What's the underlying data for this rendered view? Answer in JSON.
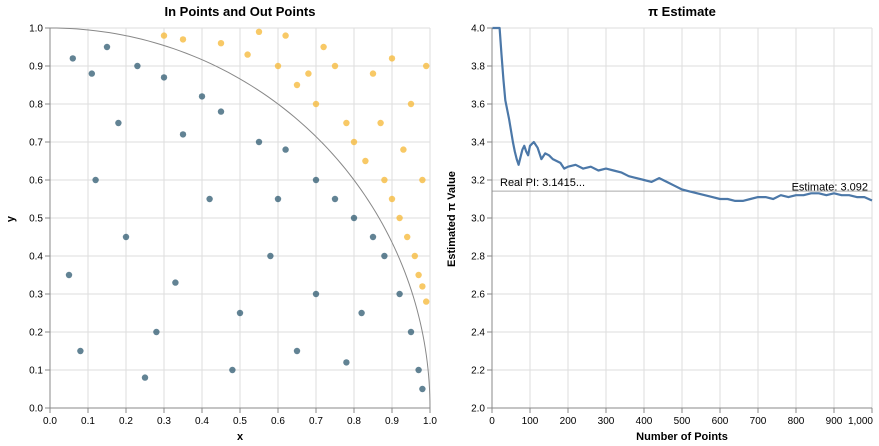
{
  "chart_data": [
    {
      "type": "scatter",
      "title": "In Points and Out Points",
      "xlabel": "x",
      "ylabel": "y",
      "xlim": [
        0,
        1
      ],
      "ylim": [
        0,
        1
      ],
      "grid": true,
      "x_ticks": [
        "0.0",
        "0.1",
        "0.2",
        "0.3",
        "0.4",
        "0.5",
        "0.6",
        "0.7",
        "0.8",
        "0.9",
        "1.0"
      ],
      "y_ticks": [
        "0.0",
        "0.1",
        "0.2",
        "0.3",
        "0.4",
        "0.5",
        "0.6",
        "0.7",
        "0.8",
        "0.9",
        "1.0"
      ],
      "boundary": "quarter circle x^2 + y^2 = 1",
      "colors": {
        "in": "#1f4e66",
        "out": "#f5b733",
        "boundary": "#888888"
      },
      "series": [
        {
          "category": "in",
          "points": [
            [
              0.06,
              0.92
            ],
            [
              0.11,
              0.88
            ],
            [
              0.15,
              0.95
            ],
            [
              0.23,
              0.9
            ],
            [
              0.3,
              0.87
            ],
            [
              0.4,
              0.82
            ],
            [
              0.45,
              0.78
            ],
            [
              0.55,
              0.7
            ],
            [
              0.62,
              0.68
            ],
            [
              0.7,
              0.6
            ],
            [
              0.75,
              0.55
            ],
            [
              0.8,
              0.5
            ],
            [
              0.85,
              0.45
            ],
            [
              0.88,
              0.4
            ],
            [
              0.92,
              0.3
            ],
            [
              0.95,
              0.2
            ],
            [
              0.97,
              0.1
            ],
            [
              0.98,
              0.05
            ],
            [
              0.12,
              0.6
            ],
            [
              0.2,
              0.45
            ],
            [
              0.33,
              0.33
            ],
            [
              0.5,
              0.25
            ],
            [
              0.65,
              0.15
            ],
            [
              0.78,
              0.12
            ],
            [
              0.08,
              0.15
            ],
            [
              0.25,
              0.08
            ],
            [
              0.42,
              0.55
            ],
            [
              0.58,
              0.4
            ],
            [
              0.7,
              0.3
            ],
            [
              0.35,
              0.72
            ],
            [
              0.18,
              0.75
            ],
            [
              0.05,
              0.35
            ],
            [
              0.28,
              0.2
            ],
            [
              0.48,
              0.1
            ],
            [
              0.6,
              0.55
            ],
            [
              0.82,
              0.25
            ]
          ]
        },
        {
          "category": "out",
          "points": [
            [
              0.3,
              0.98
            ],
            [
              0.35,
              0.97
            ],
            [
              0.45,
              0.96
            ],
            [
              0.52,
              0.93
            ],
            [
              0.6,
              0.9
            ],
            [
              0.65,
              0.85
            ],
            [
              0.7,
              0.8
            ],
            [
              0.72,
              0.95
            ],
            [
              0.78,
              0.75
            ],
            [
              0.8,
              0.7
            ],
            [
              0.83,
              0.65
            ],
            [
              0.85,
              0.88
            ],
            [
              0.88,
              0.6
            ],
            [
              0.9,
              0.55
            ],
            [
              0.92,
              0.5
            ],
            [
              0.94,
              0.45
            ],
            [
              0.96,
              0.4
            ],
            [
              0.97,
              0.35
            ],
            [
              0.98,
              0.32
            ],
            [
              0.99,
              0.28
            ],
            [
              0.95,
              0.8
            ],
            [
              0.9,
              0.92
            ],
            [
              0.75,
              0.9
            ],
            [
              0.62,
              0.98
            ],
            [
              0.55,
              0.99
            ],
            [
              0.68,
              0.88
            ],
            [
              0.87,
              0.75
            ],
            [
              0.93,
              0.68
            ],
            [
              0.98,
              0.6
            ],
            [
              0.99,
              0.9
            ]
          ]
        }
      ]
    },
    {
      "type": "line",
      "title": "π Estimate",
      "xlabel": "Number of Points",
      "ylabel": "Estimated π Value",
      "xlim": [
        0,
        1000
      ],
      "ylim": [
        2.0,
        4.0
      ],
      "grid": true,
      "x_ticks": [
        "0",
        "100",
        "200",
        "300",
        "400",
        "500",
        "600",
        "700",
        "800",
        "900",
        "1,000"
      ],
      "y_ticks": [
        "2.0",
        "2.2",
        "2.4",
        "2.6",
        "2.8",
        "3.0",
        "3.2",
        "3.4",
        "3.6",
        "3.8",
        "4.0"
      ],
      "color": "#4c78a8",
      "reference_line": {
        "value": 3.1415926,
        "label": "Real PI: 3.1415...",
        "color": "#aaaaaa"
      },
      "end_label": "Estimate: 3.092",
      "x": [
        1,
        10,
        20,
        25,
        30,
        35,
        40,
        45,
        50,
        55,
        60,
        65,
        70,
        75,
        80,
        85,
        90,
        95,
        100,
        110,
        120,
        130,
        140,
        150,
        160,
        170,
        180,
        190,
        200,
        220,
        240,
        260,
        280,
        300,
        320,
        340,
        360,
        380,
        400,
        420,
        440,
        460,
        480,
        500,
        520,
        540,
        560,
        580,
        600,
        620,
        640,
        660,
        680,
        700,
        720,
        740,
        760,
        780,
        800,
        820,
        840,
        860,
        880,
        900,
        920,
        940,
        960,
        980,
        1000
      ],
      "values": [
        4.0,
        4.0,
        4.0,
        3.86,
        3.73,
        3.62,
        3.57,
        3.52,
        3.46,
        3.4,
        3.35,
        3.31,
        3.28,
        3.32,
        3.36,
        3.38,
        3.35,
        3.33,
        3.38,
        3.4,
        3.37,
        3.31,
        3.34,
        3.33,
        3.31,
        3.3,
        3.29,
        3.26,
        3.27,
        3.28,
        3.26,
        3.27,
        3.25,
        3.26,
        3.25,
        3.24,
        3.22,
        3.21,
        3.2,
        3.19,
        3.21,
        3.19,
        3.17,
        3.15,
        3.14,
        3.13,
        3.12,
        3.11,
        3.1,
        3.1,
        3.09,
        3.09,
        3.1,
        3.11,
        3.11,
        3.1,
        3.12,
        3.11,
        3.12,
        3.12,
        3.13,
        3.13,
        3.12,
        3.13,
        3.12,
        3.12,
        3.11,
        3.11,
        3.092
      ]
    }
  ]
}
